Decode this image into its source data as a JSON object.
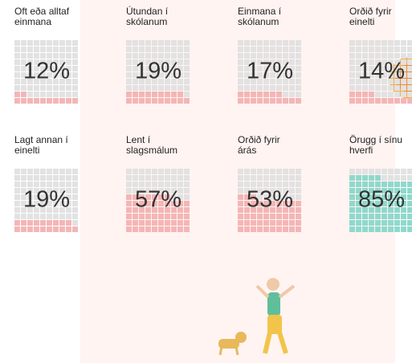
{
  "cards": [
    {
      "label_lines": [
        "Oft eða alltaf",
        "einmana"
      ],
      "value": 12,
      "value_label": "12%",
      "color": "#f4b6b6"
    },
    {
      "label_lines": [
        "Útundan í",
        "skólanum"
      ],
      "value": 19,
      "value_label": "19%",
      "color": "#f4b6b6"
    },
    {
      "label_lines": [
        "Einmana í",
        "skólanum"
      ],
      "value": 17,
      "value_label": "17%",
      "color": "#f4b6b6"
    },
    {
      "label_lines": [
        "Orðið fyrir",
        "einelti"
      ],
      "value": 14,
      "value_label": "14%",
      "color": "#f4b6b6"
    },
    {
      "label_lines": [
        "Lagt annan í",
        "einelti"
      ],
      "value": 19,
      "value_label": "19%",
      "color": "#f4b6b6"
    },
    {
      "label_lines": [
        "Lent í",
        "slagsmálum"
      ],
      "value": 57,
      "value_label": "57%",
      "color": "#f4b6b6"
    },
    {
      "label_lines": [
        "Orðið fyrir",
        "árás"
      ],
      "value": 53,
      "value_label": "53%",
      "color": "#f4b6b6"
    },
    {
      "label_lines": [
        "Örugg í sínu",
        "hverfi"
      ],
      "value": 85,
      "value_label": "85%",
      "color": "#8fd9cc"
    }
  ]
}
